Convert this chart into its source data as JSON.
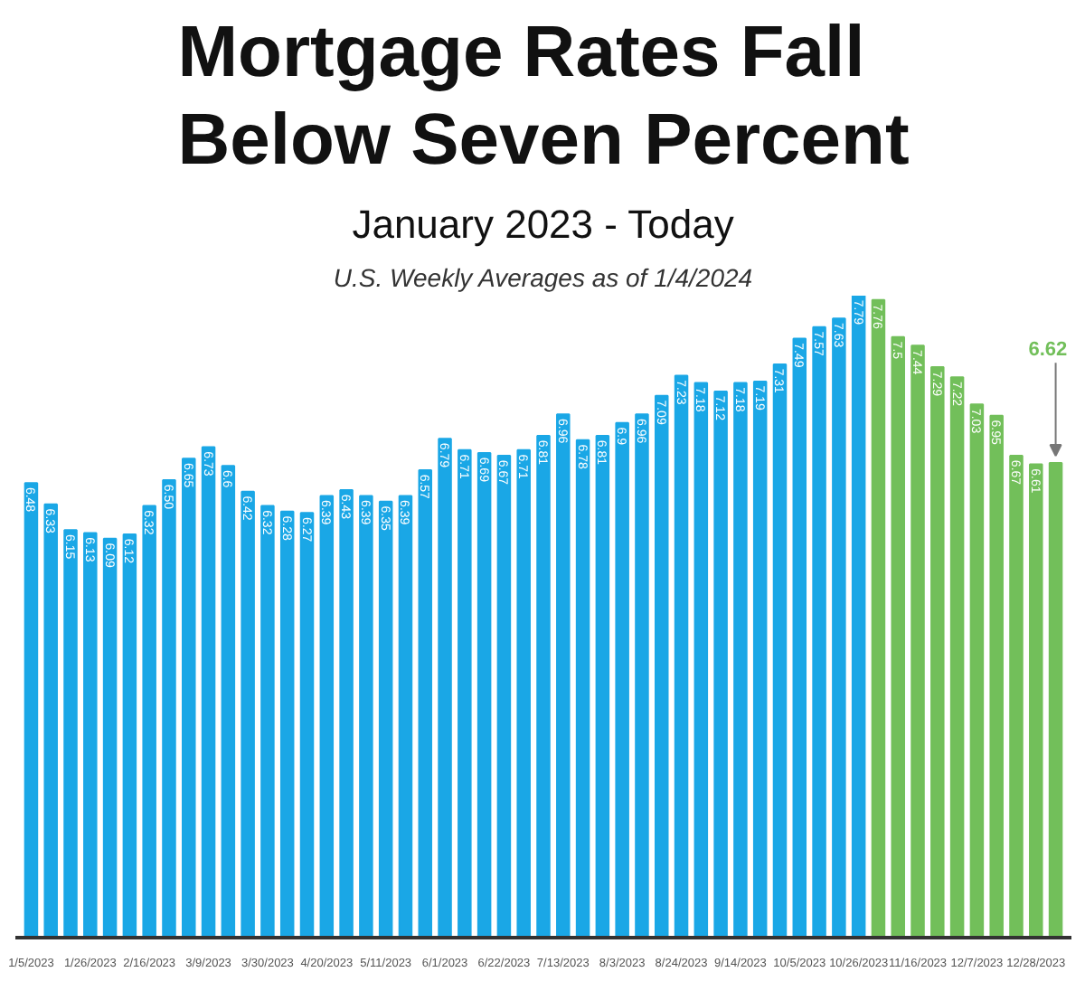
{
  "chart_data": {
    "type": "bar",
    "title": "Mortgage Rates Fall Below Seven Percent",
    "subtitle": "January 2023 - Today",
    "annotations": [
      "U.S. Weekly Averages as of 1/4/2024"
    ],
    "categories": [
      "1/5/2023",
      null,
      null,
      "1/26/2023",
      null,
      null,
      "2/16/2023",
      null,
      null,
      "3/9/2023",
      null,
      null,
      "3/30/2023",
      null,
      null,
      "4/20/2023",
      null,
      null,
      "5/11/2023",
      null,
      null,
      "6/1/2023",
      null,
      null,
      "6/22/2023",
      null,
      null,
      "7/13/2023",
      null,
      null,
      "8/3/2023",
      null,
      null,
      "8/24/2023",
      null,
      null,
      "9/14/2023",
      null,
      null,
      "10/5/2023",
      null,
      null,
      "10/26/2023",
      null,
      null,
      "11/16/2023",
      null,
      null,
      "12/7/2023",
      null,
      null,
      "12/28/2023",
      null
    ],
    "values": [
      6.48,
      6.33,
      6.15,
      6.13,
      6.09,
      6.12,
      6.32,
      6.5,
      6.65,
      6.73,
      6.6,
      6.42,
      6.32,
      6.28,
      6.27,
      6.39,
      6.43,
      6.39,
      6.35,
      6.39,
      6.57,
      6.79,
      6.71,
      6.69,
      6.67,
      6.71,
      6.81,
      6.96,
      6.78,
      6.81,
      6.9,
      6.96,
      7.09,
      7.23,
      7.18,
      7.12,
      7.18,
      7.19,
      7.31,
      7.49,
      7.57,
      7.63,
      7.79,
      7.76,
      7.5,
      7.44,
      7.29,
      7.22,
      7.03,
      6.95,
      6.67,
      6.61,
      6.62
    ],
    "value_labels": [
      "6.48",
      "6.33",
      "6.15",
      "6.13",
      "6.09",
      "6.12",
      "6.32",
      "6.50",
      "6.65",
      "6.73",
      "6.6",
      "6.42",
      "6.32",
      "6.28",
      "6.27",
      "6.39",
      "6.43",
      "6.39",
      "6.35",
      "6.39",
      "6.57",
      "6.79",
      "6.71",
      "6.69",
      "6.67",
      "6.71",
      "6.81",
      "6.96",
      "6.78",
      "6.81",
      "6.9",
      "6.96",
      "7.09",
      "7.23",
      "7.18",
      "7.12",
      "7.18",
      "7.19",
      "7.31",
      "7.49",
      "7.57",
      "7.63",
      "7.79",
      "7.76",
      "7.5",
      "7.44",
      "7.29",
      "7.22",
      "7.03",
      "6.95",
      "6.67",
      "6.61",
      "6.62"
    ],
    "colors": [
      "#1aa7e6",
      "#1aa7e6",
      "#1aa7e6",
      "#1aa7e6",
      "#1aa7e6",
      "#1aa7e6",
      "#1aa7e6",
      "#1aa7e6",
      "#1aa7e6",
      "#1aa7e6",
      "#1aa7e6",
      "#1aa7e6",
      "#1aa7e6",
      "#1aa7e6",
      "#1aa7e6",
      "#1aa7e6",
      "#1aa7e6",
      "#1aa7e6",
      "#1aa7e6",
      "#1aa7e6",
      "#1aa7e6",
      "#1aa7e6",
      "#1aa7e6",
      "#1aa7e6",
      "#1aa7e6",
      "#1aa7e6",
      "#1aa7e6",
      "#1aa7e6",
      "#1aa7e6",
      "#1aa7e6",
      "#1aa7e6",
      "#1aa7e6",
      "#1aa7e6",
      "#1aa7e6",
      "#1aa7e6",
      "#1aa7e6",
      "#1aa7e6",
      "#1aa7e6",
      "#1aa7e6",
      "#1aa7e6",
      "#1aa7e6",
      "#1aa7e6",
      "#1aa7e6",
      "#72bf5a",
      "#72bf5a",
      "#72bf5a",
      "#72bf5a",
      "#72bf5a",
      "#72bf5a",
      "#72bf5a",
      "#72bf5a",
      "#72bf5a",
      "#72bf5a"
    ],
    "ylim": [
      3.3,
      7.79
    ],
    "tick_labels": "x"
  }
}
